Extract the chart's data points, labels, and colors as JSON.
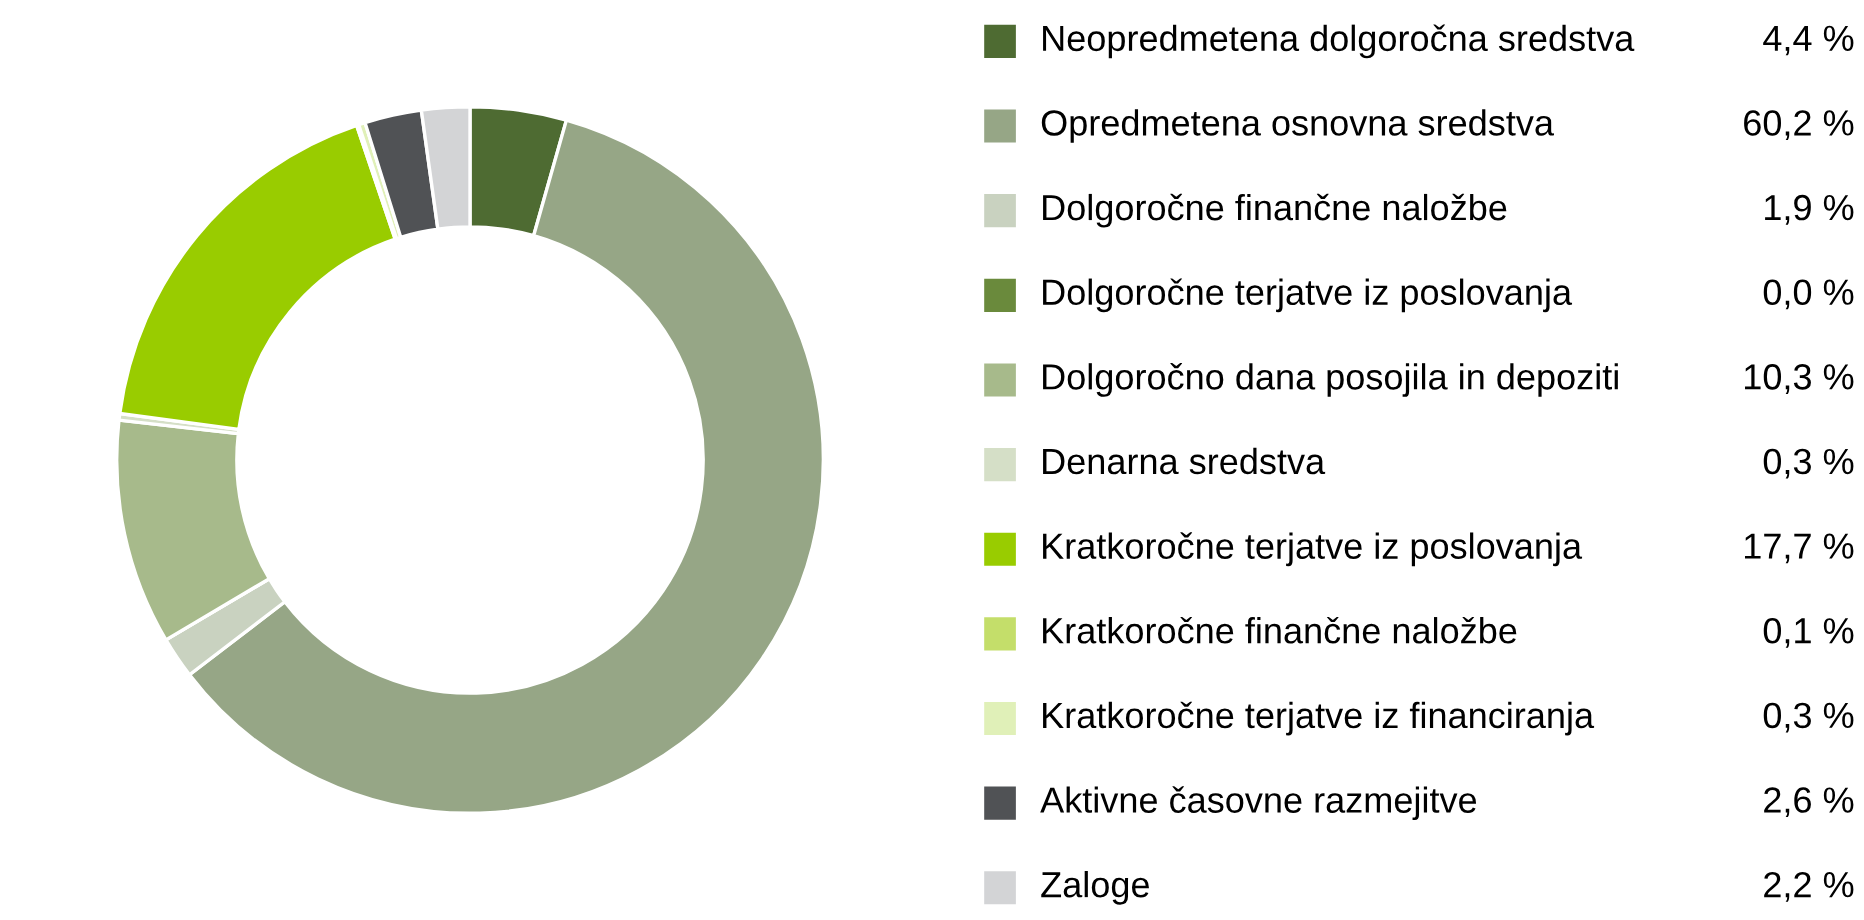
{
  "chart_data": {
    "type": "donut",
    "legend": "right",
    "categories": [
      "Neopredmetena dolgoročna sredstva",
      "Opredmetena osnovna sredstva",
      "Dolgoročne finančne naložbe",
      "Dolgoročne terjatve iz poslovanja",
      "Dolgoročno dana posojila in depoziti",
      "Denarna sredstva",
      "Kratkoročne terjatve iz poslovanja",
      "Kratkoročne finančne naložbe",
      "Kratkoročne terjatve iz financiranja",
      "Aktivne časovne razmejitve",
      "Zaloge"
    ],
    "values": [
      4.4,
      60.2,
      1.9,
      0.0,
      10.3,
      0.3,
      17.7,
      0.1,
      0.3,
      2.6,
      2.2
    ],
    "value_labels": [
      "4,4 %",
      "60,2 %",
      "1,9 %",
      "0,0 %",
      "10,3 %",
      "0,3 %",
      "17,7 %",
      "0,1 %",
      "0,3 %",
      "2,6 %",
      "2,2 %"
    ],
    "colors": [
      "#4e6b32",
      "#96a686",
      "#c9d2c0",
      "#6a8a3c",
      "#a7ba8b",
      "#d5dfc7",
      "#99cc00",
      "#c4de6a",
      "#e0f0b8",
      "#505255",
      "#d3d4d6"
    ]
  }
}
